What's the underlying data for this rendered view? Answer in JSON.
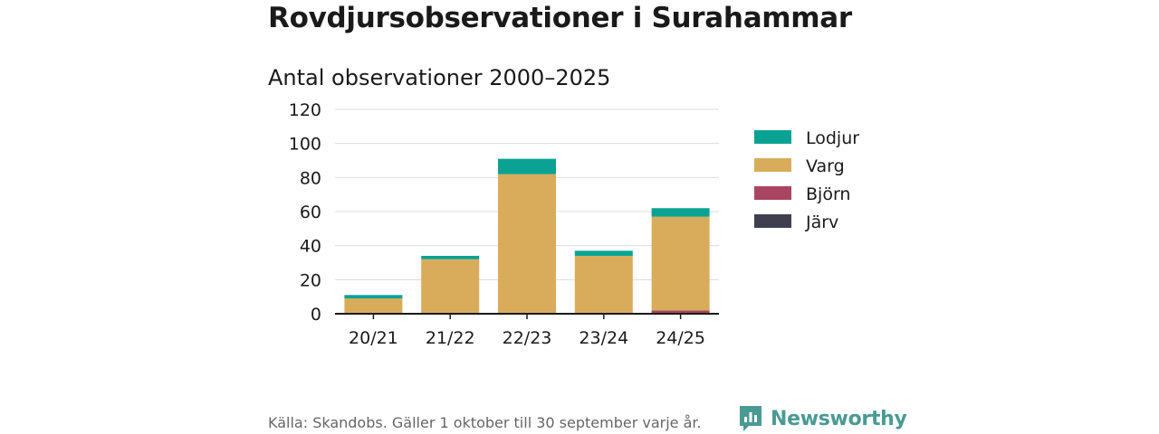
{
  "title": "Rovdjursobservationer i Surahammar",
  "subtitle": "Antal observationer 2000–2025",
  "source": "Källa: Skandobs. Gäller 1 oktober till 30 september varje år.",
  "brand": {
    "name": "Newsworthy",
    "color": "#4a9a93"
  },
  "chart_data": {
    "type": "bar",
    "stacked": true,
    "title": "Antal observationer 2000–2025",
    "xlabel": "",
    "ylabel": "",
    "categories": [
      "20/21",
      "21/22",
      "22/23",
      "23/24",
      "24/25"
    ],
    "ylim": [
      0,
      120
    ],
    "yticks": [
      0,
      20,
      40,
      60,
      80,
      100,
      120
    ],
    "grid": true,
    "legend_position": "right",
    "series": [
      {
        "name": "Järv",
        "color": "#3f3f4f",
        "values": [
          0,
          0,
          0,
          0,
          0
        ]
      },
      {
        "name": "Björn",
        "color": "#a94560",
        "values": [
          0,
          0,
          0,
          0,
          2
        ]
      },
      {
        "name": "Varg",
        "color": "#d9ac5c",
        "values": [
          9,
          32,
          82,
          34,
          55
        ]
      },
      {
        "name": "Lodjur",
        "color": "#0aa393",
        "values": [
          2,
          2,
          9,
          3,
          5
        ]
      }
    ],
    "legend_order": [
      "Lodjur",
      "Varg",
      "Björn",
      "Järv"
    ]
  }
}
